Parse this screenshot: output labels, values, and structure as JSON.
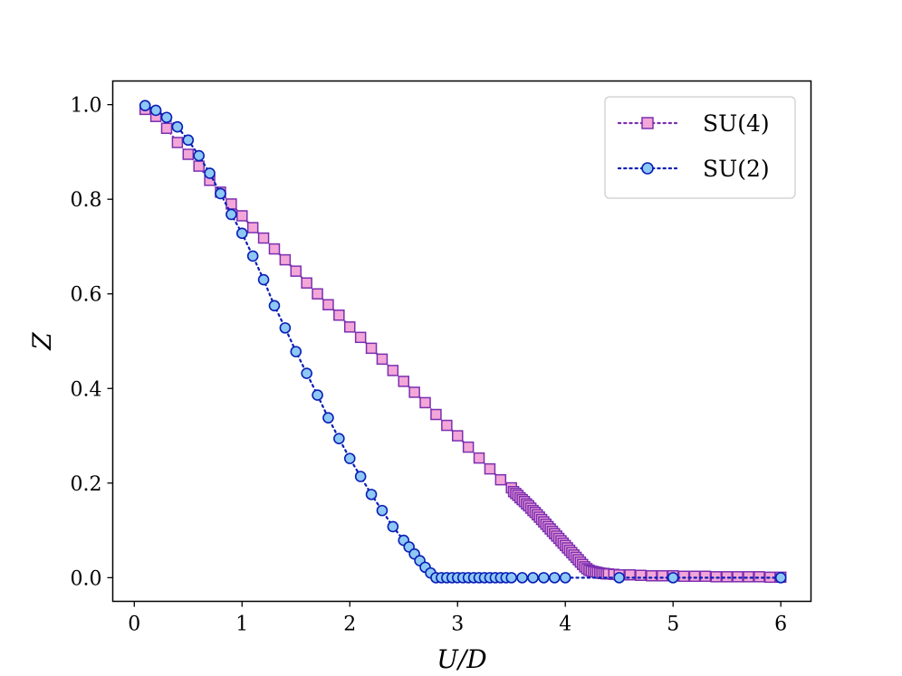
{
  "chart_data": {
    "type": "line",
    "title": "",
    "xlabel": "U/D",
    "ylabel": "Z",
    "xlim": [
      -0.2,
      6.28
    ],
    "ylim": [
      -0.05,
      1.05
    ],
    "xticks": [
      0,
      1,
      2,
      3,
      4,
      5,
      6
    ],
    "yticks": [
      0.0,
      0.2,
      0.4,
      0.6,
      0.8,
      1.0
    ],
    "xtick_labels": [
      "0",
      "1",
      "2",
      "3",
      "4",
      "5",
      "6"
    ],
    "ytick_labels": [
      "0.0",
      "0.2",
      "0.4",
      "0.6",
      "0.8",
      "1.0"
    ],
    "grid": false,
    "legend_position": "top-right",
    "series": [
      {
        "name": "SU(4)",
        "marker": "square",
        "line_style": "dotted",
        "line_color": "#7b2fb0",
        "marker_fill": "#f3a6d8",
        "marker_edge": "#7b2fb0",
        "x": [
          0.1,
          0.2,
          0.3,
          0.4,
          0.5,
          0.6,
          0.7,
          0.8,
          0.9,
          1.0,
          1.1,
          1.2,
          1.3,
          1.4,
          1.5,
          1.6,
          1.7,
          1.8,
          1.9,
          2.0,
          2.1,
          2.2,
          2.3,
          2.4,
          2.5,
          2.6,
          2.7,
          2.8,
          2.9,
          3.0,
          3.1,
          3.2,
          3.3,
          3.4,
          3.5,
          3.52,
          3.54,
          3.56,
          3.58,
          3.6,
          3.62,
          3.64,
          3.66,
          3.68,
          3.7,
          3.72,
          3.74,
          3.76,
          3.78,
          3.8,
          3.82,
          3.84,
          3.86,
          3.88,
          3.9,
          3.92,
          3.94,
          3.96,
          3.98,
          4.0,
          4.02,
          4.04,
          4.06,
          4.08,
          4.1,
          4.12,
          4.14,
          4.16,
          4.18,
          4.2,
          4.22,
          4.24,
          4.26,
          4.28,
          4.3,
          4.32,
          4.34,
          4.36,
          4.38,
          4.4,
          4.45,
          4.5,
          4.6,
          4.7,
          4.8,
          4.9,
          5.0,
          5.1,
          5.2,
          5.3,
          5.4,
          5.5,
          5.6,
          5.7,
          5.8,
          5.9,
          6.0
        ],
        "y": [
          0.99,
          0.975,
          0.95,
          0.92,
          0.895,
          0.87,
          0.84,
          0.815,
          0.79,
          0.765,
          0.74,
          0.718,
          0.695,
          0.672,
          0.648,
          0.623,
          0.6,
          0.577,
          0.555,
          0.53,
          0.508,
          0.485,
          0.462,
          0.438,
          0.415,
          0.392,
          0.37,
          0.345,
          0.322,
          0.3,
          0.276,
          0.253,
          0.23,
          0.207,
          0.19,
          0.182,
          0.178,
          0.174,
          0.169,
          0.165,
          0.161,
          0.156,
          0.152,
          0.147,
          0.142,
          0.138,
          0.133,
          0.128,
          0.123,
          0.118,
          0.113,
          0.108,
          0.103,
          0.098,
          0.093,
          0.088,
          0.083,
          0.078,
          0.073,
          0.068,
          0.063,
          0.058,
          0.053,
          0.048,
          0.043,
          0.038,
          0.033,
          0.028,
          0.023,
          0.019,
          0.016,
          0.014,
          0.013,
          0.012,
          0.011,
          0.01,
          0.009,
          0.009,
          0.008,
          0.008,
          0.007,
          0.006,
          0.006,
          0.005,
          0.004,
          0.004,
          0.004,
          0.003,
          0.003,
          0.003,
          0.002,
          0.002,
          0.002,
          0.002,
          0.002,
          0.001,
          0.001
        ]
      },
      {
        "name": "SU(2)",
        "marker": "circle",
        "line_style": "dotted",
        "line_color": "#0a1fb5",
        "marker_fill": "#8ec8f5",
        "marker_edge": "#0a1fb5",
        "x": [
          0.1,
          0.2,
          0.3,
          0.4,
          0.5,
          0.6,
          0.7,
          0.8,
          0.9,
          1.0,
          1.1,
          1.2,
          1.3,
          1.4,
          1.5,
          1.6,
          1.7,
          1.8,
          1.9,
          2.0,
          2.1,
          2.2,
          2.3,
          2.4,
          2.5,
          2.55,
          2.6,
          2.65,
          2.7,
          2.75,
          2.8,
          2.85,
          2.9,
          2.95,
          3.0,
          3.05,
          3.1,
          3.15,
          3.2,
          3.25,
          3.3,
          3.35,
          3.4,
          3.45,
          3.5,
          3.6,
          3.7,
          3.8,
          3.9,
          4.0,
          4.5,
          5.0,
          6.0
        ],
        "y": [
          0.998,
          0.988,
          0.973,
          0.953,
          0.925,
          0.892,
          0.855,
          0.812,
          0.768,
          0.728,
          0.68,
          0.63,
          0.575,
          0.528,
          0.478,
          0.432,
          0.386,
          0.338,
          0.294,
          0.252,
          0.214,
          0.176,
          0.142,
          0.108,
          0.079,
          0.065,
          0.05,
          0.036,
          0.022,
          0.01,
          0.0,
          0.0,
          0.0,
          0.0,
          0.0,
          0.0,
          0.0,
          0.0,
          0.0,
          0.0,
          0.0,
          0.0,
          0.0,
          0.0,
          0.0,
          0.0,
          0.0,
          0.0,
          0.0,
          0.0,
          0.0,
          0.0,
          0.0
        ]
      }
    ]
  }
}
